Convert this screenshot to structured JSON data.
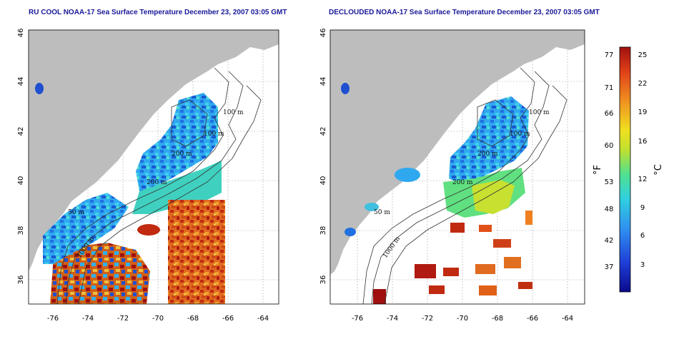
{
  "panels": [
    {
      "id": "left",
      "title": "RU COOL NOAA-17 Sea Surface Temperature December 23, 2007 03:05 GMT",
      "contour_labels": [
        "100 m",
        "100 m",
        "200 m",
        "200 m",
        "50 m",
        "1000 m",
        "200 m"
      ]
    },
    {
      "id": "right",
      "title": "DECLOUDED NOAA-17 Sea Surface Temperature December 23, 2007 03:05 GMT",
      "contour_labels": [
        "100 m",
        "100 m",
        "200 m",
        "200 m",
        "50 m",
        "1000 m",
        "200 m"
      ]
    }
  ],
  "axes": {
    "lon_ticks": [
      "-76",
      "-74",
      "-72",
      "-70",
      "-68",
      "-66",
      "-64"
    ],
    "lat_ticks": [
      "46",
      "44",
      "42",
      "40",
      "38",
      "36"
    ]
  },
  "colorbar": {
    "fahrenheit_ticks": [
      "77",
      "71",
      "66",
      "60",
      "53",
      "48",
      "42",
      "37"
    ],
    "celsius_ticks": [
      "25",
      "22",
      "19",
      "16",
      "12",
      "9",
      "6",
      "3"
    ],
    "fahrenheit_unit": "°F",
    "celsius_unit": "°C",
    "colors": [
      "#0a0a8c",
      "#1f3fd8",
      "#2f8cf0",
      "#30d0e0",
      "#50e090",
      "#c0e030",
      "#f0e020",
      "#f09020",
      "#e04018",
      "#a01010"
    ]
  },
  "colors": {
    "land": "#bdbdbd",
    "ocean_missing": "#ffffff",
    "contour": "#333333"
  }
}
